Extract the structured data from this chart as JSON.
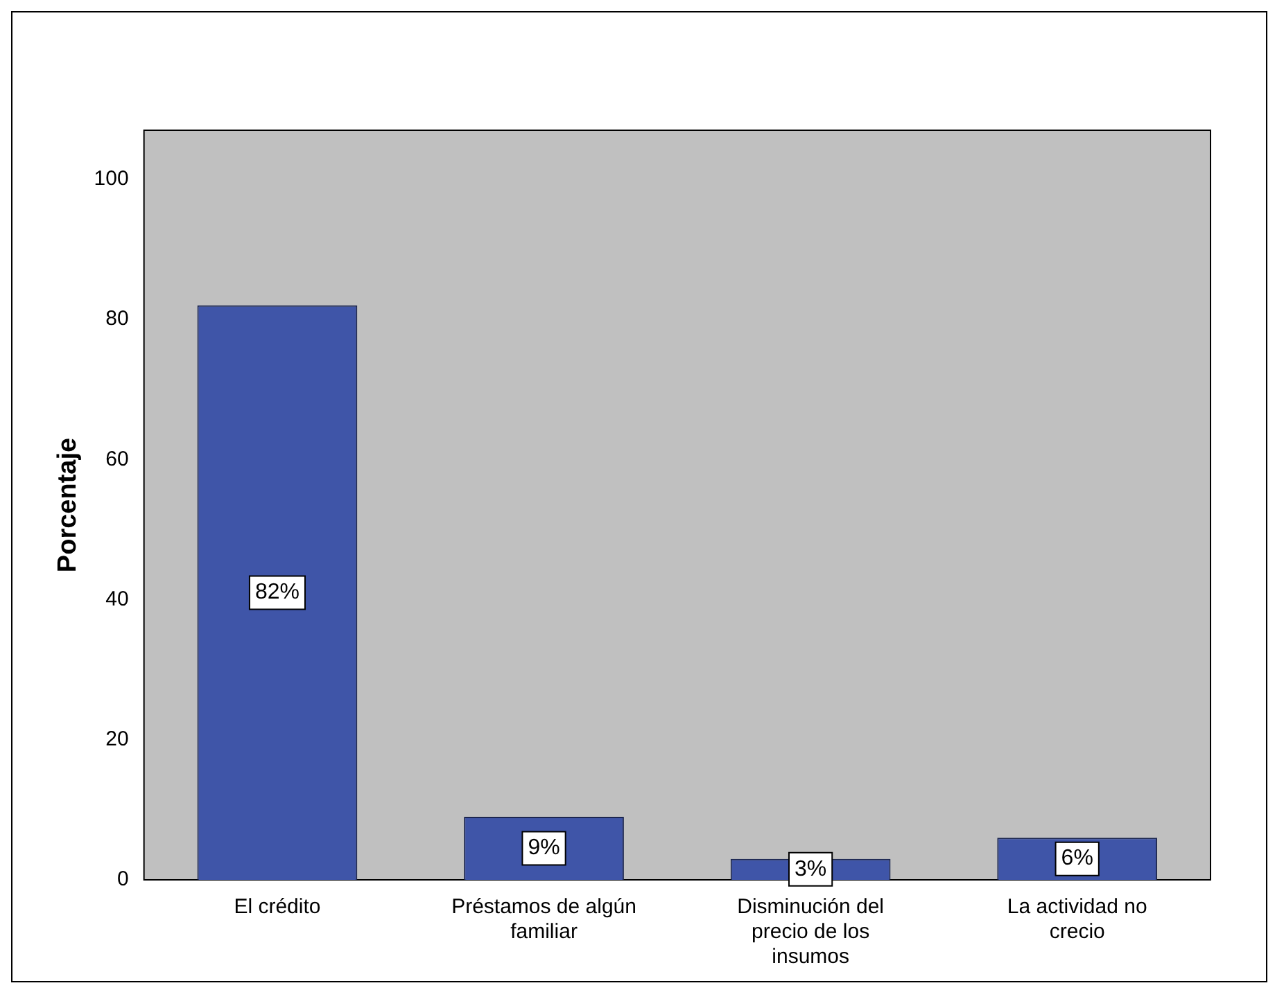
{
  "chart_data": {
    "type": "bar",
    "ylabel": "Porcentaje",
    "categories": [
      "El crédito",
      "Préstamos de algún familiar",
      "Disminución del precio de los insumos",
      "La actividad no crecio"
    ],
    "values": [
      82,
      9,
      3,
      6
    ],
    "color": "#3f55a8",
    "value_labels": [
      "82%",
      "9%",
      "3%",
      "6%"
    ],
    "ylim": [
      0,
      107
    ],
    "yticks": [
      0,
      20,
      40,
      60,
      80,
      100
    ],
    "grid": false,
    "legend": false
  }
}
